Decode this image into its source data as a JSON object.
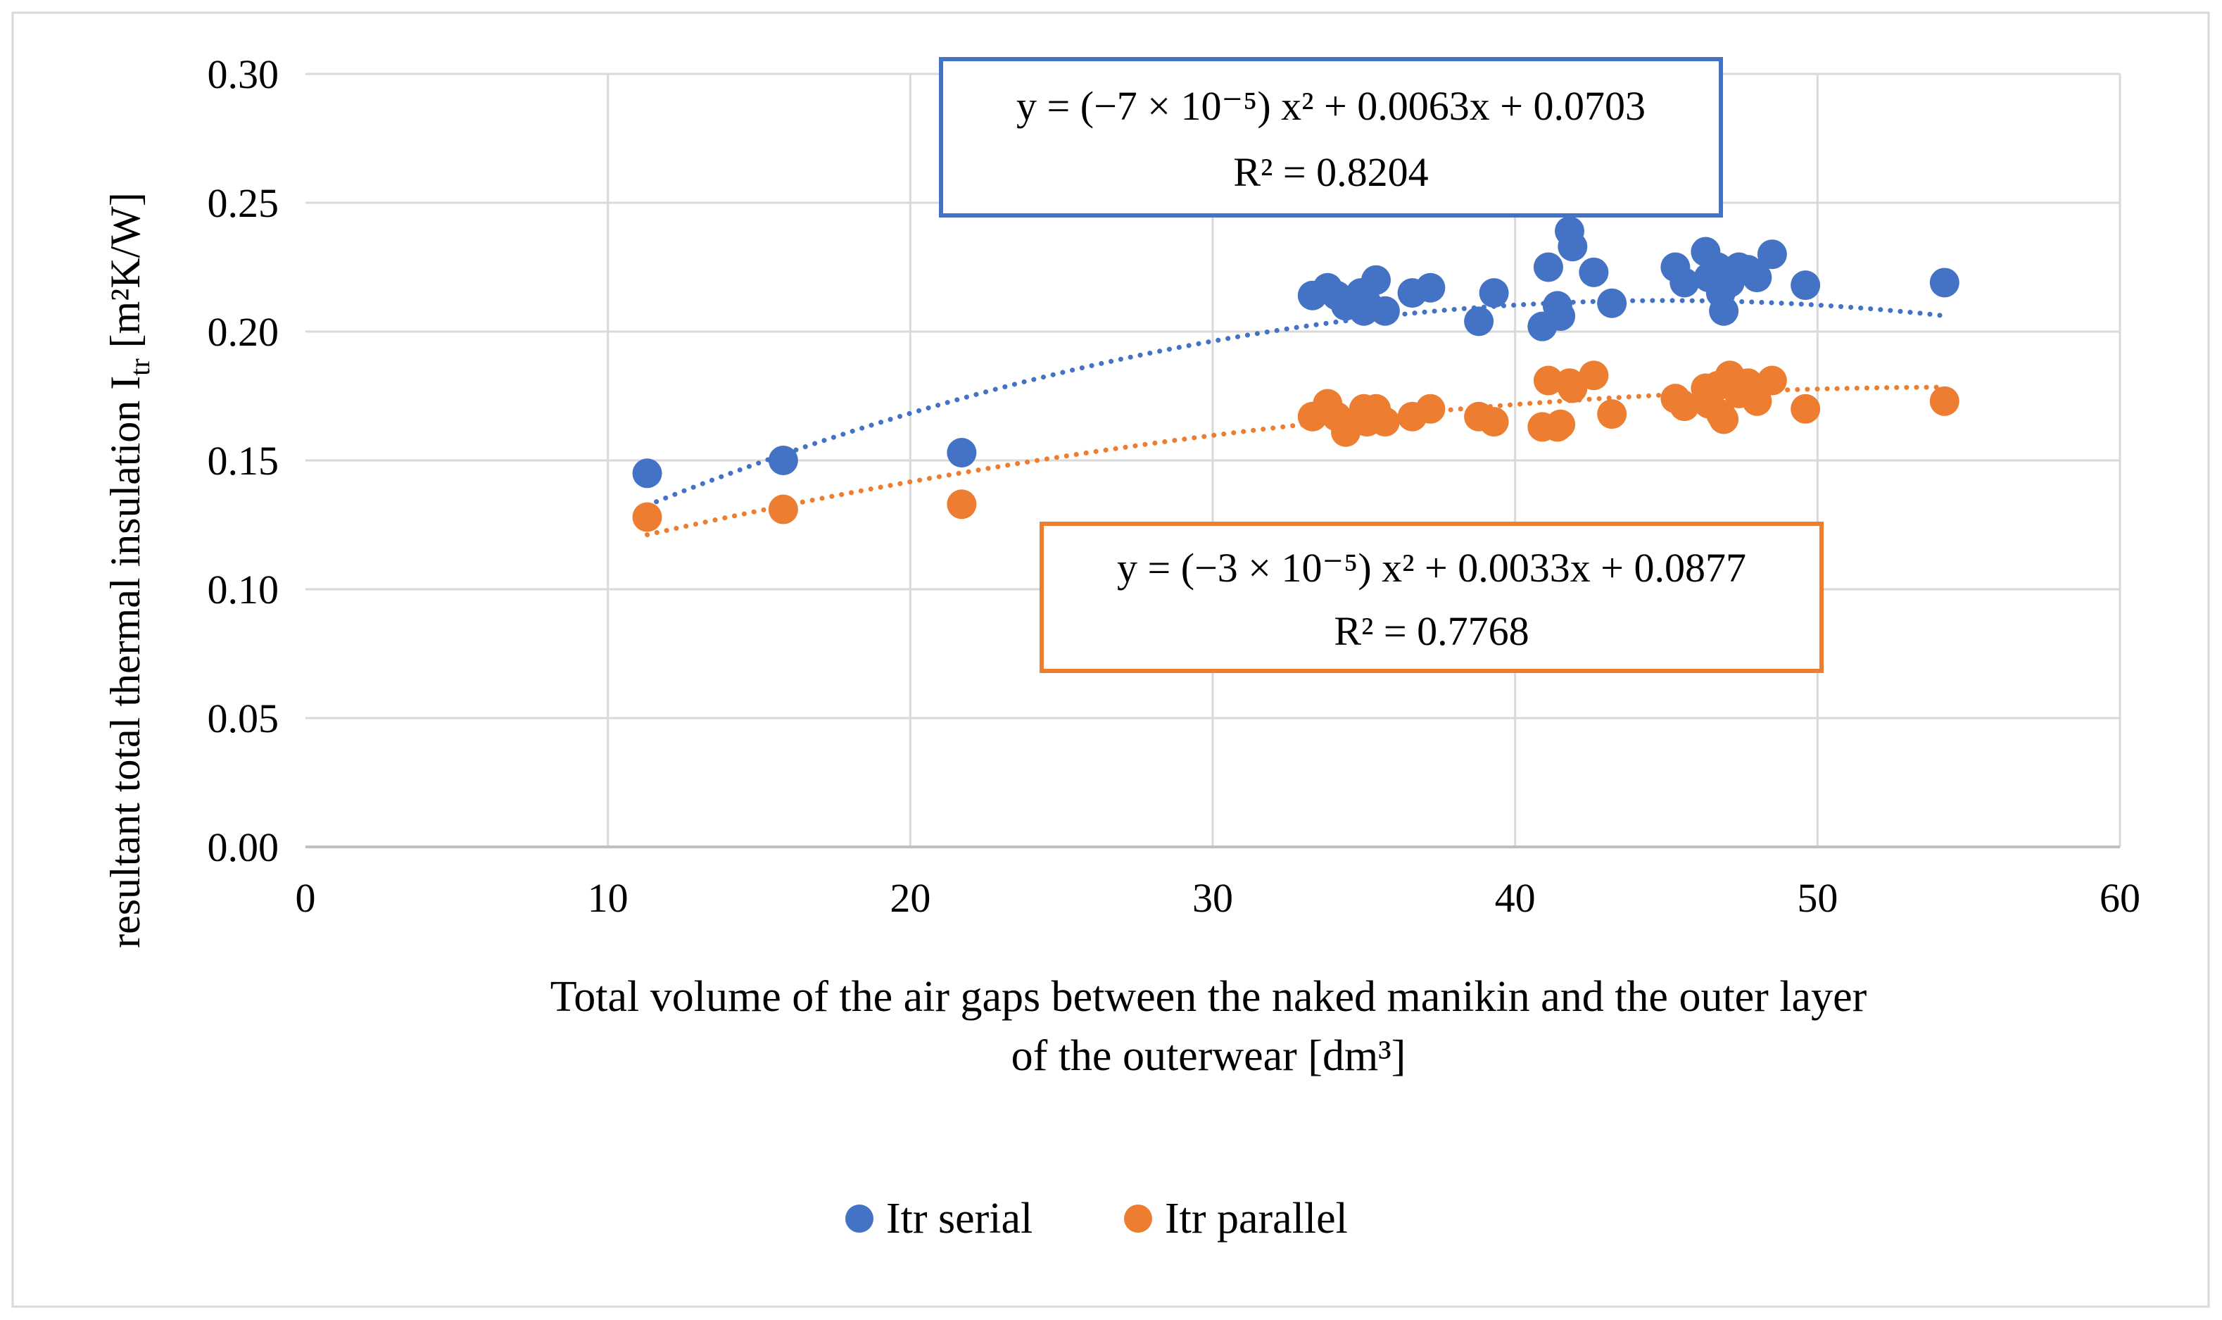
{
  "chart_data": {
    "type": "scatter",
    "title": "",
    "xlabel_lines": [
      "Total volume of the air gaps between the naked manikin and the outer layer",
      "of the outerwear [dm³]"
    ],
    "ylabel_prefix": "resultant total thermal insulation I",
    "ylabel_sub": "tr",
    "ylabel_suffix": " [m²K/W]",
    "xlim": [
      0,
      60
    ],
    "ylim": [
      0,
      0.3
    ],
    "xticks": [
      "0",
      "10",
      "20",
      "30",
      "40",
      "50",
      "60"
    ],
    "yticks": [
      "0.00",
      "0.05",
      "0.10",
      "0.15",
      "0.20",
      "0.25",
      "0.30"
    ],
    "grid": true,
    "legend_position": "bottom",
    "series": [
      {
        "name": "Itr serial",
        "color": "#4472C4",
        "trendline": {
          "type": "poly2",
          "a": -7e-05,
          "b": 0.0063,
          "c": 0.0703,
          "x_range": [
            11.3,
            54.2
          ]
        },
        "equation_lines": [
          "y = (−7 × 10⁻⁵) x² + 0.0063x + 0.0703",
          "R² = 0.8204"
        ],
        "points": [
          [
            11.3,
            0.145
          ],
          [
            15.8,
            0.15
          ],
          [
            21.7,
            0.153
          ],
          [
            33.3,
            0.214
          ],
          [
            33.8,
            0.217
          ],
          [
            34.1,
            0.214
          ],
          [
            34.4,
            0.21
          ],
          [
            34.9,
            0.215
          ],
          [
            35.0,
            0.208
          ],
          [
            35.1,
            0.211
          ],
          [
            35.4,
            0.22
          ],
          [
            35.7,
            0.208
          ],
          [
            36.6,
            0.215
          ],
          [
            37.2,
            0.217
          ],
          [
            38.8,
            0.204
          ],
          [
            39.3,
            0.215
          ],
          [
            40.9,
            0.202
          ],
          [
            41.1,
            0.225
          ],
          [
            41.4,
            0.21
          ],
          [
            41.5,
            0.206
          ],
          [
            41.8,
            0.239
          ],
          [
            41.9,
            0.233
          ],
          [
            42.6,
            0.223
          ],
          [
            43.2,
            0.211
          ],
          [
            45.3,
            0.225
          ],
          [
            45.6,
            0.219
          ],
          [
            46.3,
            0.231
          ],
          [
            46.4,
            0.221
          ],
          [
            46.7,
            0.225
          ],
          [
            46.8,
            0.215
          ],
          [
            46.9,
            0.208
          ],
          [
            47.1,
            0.219
          ],
          [
            47.4,
            0.225
          ],
          [
            47.7,
            0.224
          ],
          [
            48.0,
            0.221
          ],
          [
            48.5,
            0.23
          ],
          [
            49.6,
            0.218
          ],
          [
            54.2,
            0.219
          ]
        ]
      },
      {
        "name": "Itr parallel",
        "color": "#ED7D31",
        "trendline": {
          "type": "poly2",
          "a": -3e-05,
          "b": 0.0033,
          "c": 0.0877,
          "x_range": [
            11.3,
            54.2
          ]
        },
        "equation_lines": [
          "y = (−3 × 10⁻⁵) x² + 0.0033x + 0.0877",
          "R² = 0.7768"
        ],
        "points": [
          [
            11.3,
            0.128
          ],
          [
            15.8,
            0.131
          ],
          [
            21.7,
            0.133
          ],
          [
            33.3,
            0.167
          ],
          [
            33.8,
            0.172
          ],
          [
            34.1,
            0.167
          ],
          [
            34.4,
            0.161
          ],
          [
            34.9,
            0.166
          ],
          [
            35.0,
            0.17
          ],
          [
            35.1,
            0.165
          ],
          [
            35.4,
            0.17
          ],
          [
            35.7,
            0.165
          ],
          [
            36.6,
            0.167
          ],
          [
            37.2,
            0.17
          ],
          [
            38.8,
            0.167
          ],
          [
            39.3,
            0.165
          ],
          [
            40.9,
            0.163
          ],
          [
            41.1,
            0.181
          ],
          [
            41.4,
            0.163
          ],
          [
            41.5,
            0.164
          ],
          [
            41.8,
            0.18
          ],
          [
            41.9,
            0.178
          ],
          [
            42.6,
            0.183
          ],
          [
            43.2,
            0.168
          ],
          [
            45.3,
            0.174
          ],
          [
            45.6,
            0.171
          ],
          [
            46.3,
            0.178
          ],
          [
            46.4,
            0.172
          ],
          [
            46.7,
            0.179
          ],
          [
            46.8,
            0.168
          ],
          [
            46.9,
            0.166
          ],
          [
            47.1,
            0.183
          ],
          [
            47.4,
            0.176
          ],
          [
            47.7,
            0.18
          ],
          [
            48.0,
            0.173
          ],
          [
            48.5,
            0.181
          ],
          [
            49.6,
            0.17
          ],
          [
            54.2,
            0.173
          ]
        ]
      }
    ]
  }
}
